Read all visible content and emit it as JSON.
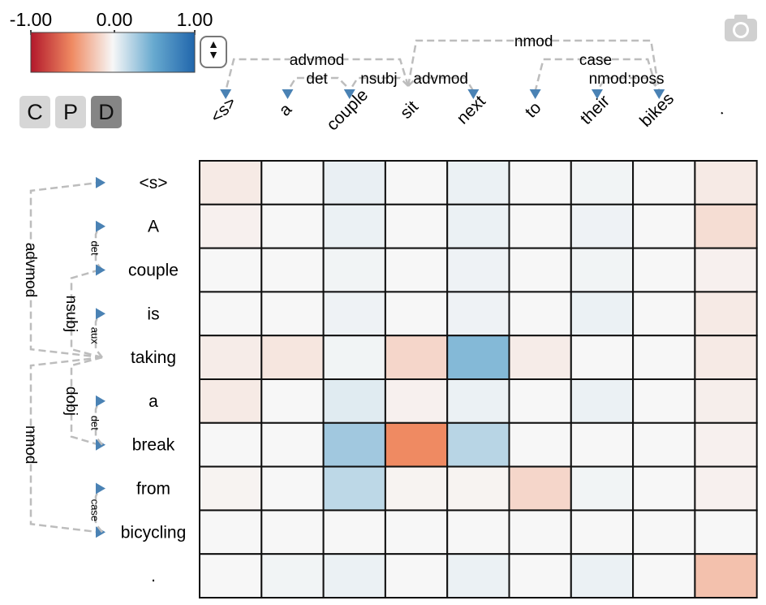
{
  "colorbar": {
    "min_label": "-1.00",
    "mid_label": "0.00",
    "max_label": "1.00",
    "colors": [
      "#b2182b",
      "#ef8a62",
      "#f7f7f7",
      "#67a9cf",
      "#2166ac"
    ]
  },
  "controls": {
    "spinner_glyph": "▲▼",
    "buttons": [
      {
        "label": "C",
        "active": false
      },
      {
        "label": "P",
        "active": false
      },
      {
        "label": "D",
        "active": true
      }
    ],
    "camera_icon": "camera-icon"
  },
  "chart_data": {
    "type": "heatmap",
    "x_tokens": [
      "<s>",
      "a",
      "couple",
      "sit",
      "next",
      "to",
      "their",
      "bikes",
      "."
    ],
    "y_tokens": [
      "<s>",
      "A",
      "couple",
      "is",
      "taking",
      "a",
      "break",
      "from",
      "bicycling",
      "."
    ],
    "value_range": [
      -1,
      1
    ],
    "values": [
      [
        -0.06,
        0.0,
        0.05,
        0.0,
        0.04,
        0.0,
        0.02,
        0.0,
        -0.06
      ],
      [
        -0.03,
        0.0,
        0.04,
        0.0,
        0.04,
        0.0,
        0.03,
        0.0,
        -0.12
      ],
      [
        0.0,
        0.0,
        0.02,
        0.0,
        0.03,
        0.0,
        0.02,
        0.0,
        -0.03
      ],
      [
        0.0,
        0.0,
        0.03,
        0.0,
        0.03,
        0.0,
        0.04,
        0.0,
        -0.06
      ],
      [
        -0.05,
        -0.08,
        0.02,
        -0.15,
        0.4,
        -0.05,
        0.0,
        0.0,
        -0.06
      ],
      [
        -0.06,
        0.0,
        0.08,
        -0.03,
        0.04,
        0.0,
        0.04,
        0.0,
        -0.04
      ],
      [
        0.0,
        0.0,
        0.3,
        -0.5,
        0.22,
        0.0,
        0.0,
        0.0,
        -0.03
      ],
      [
        -0.02,
        0.0,
        0.2,
        -0.02,
        -0.02,
        -0.15,
        0.02,
        0.0,
        -0.03
      ],
      [
        0.0,
        0.0,
        0.0,
        0.0,
        0.0,
        0.0,
        0.0,
        0.0,
        0.0
      ],
      [
        0.0,
        0.02,
        0.04,
        0.0,
        0.04,
        0.0,
        0.04,
        0.0,
        -0.25
      ]
    ],
    "top_arcs": [
      {
        "from": "sit",
        "to": "<s>",
        "label": "advmod"
      },
      {
        "from": "couple",
        "to": "a",
        "label": "det"
      },
      {
        "from": "sit",
        "to": "couple",
        "label": "nsubj"
      },
      {
        "from": "sit",
        "to": "next",
        "label": "advmod"
      },
      {
        "from": "sit",
        "to": "bikes",
        "label": "nmod"
      },
      {
        "from": "bikes",
        "to": "to",
        "label": "case"
      },
      {
        "from": "bikes",
        "to": "their",
        "label": "nmod:poss"
      }
    ],
    "left_arcs": [
      {
        "from": "taking",
        "to": "<s>",
        "label": "advmod"
      },
      {
        "from": "couple",
        "to": "A",
        "label": "det"
      },
      {
        "from": "taking",
        "to": "couple",
        "label": "nsubj"
      },
      {
        "from": "taking",
        "to": "is",
        "label": "aux"
      },
      {
        "from": "taking",
        "to": "break",
        "label": "dobj"
      },
      {
        "from": "break",
        "to": "a",
        "label": "det"
      },
      {
        "from": "taking",
        "to": "bicycling",
        "label": "nmod"
      },
      {
        "from": "bicycling",
        "to": "from",
        "label": "case"
      }
    ]
  }
}
